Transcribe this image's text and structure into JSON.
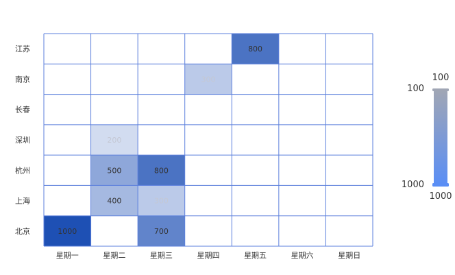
{
  "chart_data": {
    "type": "heatmap",
    "x_categories": [
      "星期一",
      "星期二",
      "星期三",
      "星期四",
      "星期五",
      "星期六",
      "星期日"
    ],
    "y_categories": [
      "北京",
      "上海",
      "杭州",
      "深圳",
      "长春",
      "南京",
      "江苏"
    ],
    "values": [
      {
        "x": "星期一",
        "y": "北京",
        "value": 1000
      },
      {
        "x": "星期三",
        "y": "北京",
        "value": 700
      },
      {
        "x": "星期二",
        "y": "上海",
        "value": 400
      },
      {
        "x": "星期三",
        "y": "上海",
        "value": 300
      },
      {
        "x": "星期二",
        "y": "杭州",
        "value": 500
      },
      {
        "x": "星期三",
        "y": "杭州",
        "value": 800
      },
      {
        "x": "星期二",
        "y": "深圳",
        "value": 200
      },
      {
        "x": "星期四",
        "y": "南京",
        "value": 300
      },
      {
        "x": "星期五",
        "y": "江苏",
        "value": 800
      }
    ],
    "visual_map": {
      "min": 100,
      "max": 1000,
      "min_label": "100",
      "max_label": "1000",
      "handle_top_label": "100",
      "handle_bottom_label": "1000",
      "color_low": "#a0a6b5",
      "color_high": "#5a8ef5"
    },
    "cell_color_low": "#e8edf8",
    "cell_color_high": "#1e50b4",
    "grid_line_color": "#5b7fdc",
    "label_color_light": "#c4c8d4",
    "label_color_dark": "#333333"
  }
}
